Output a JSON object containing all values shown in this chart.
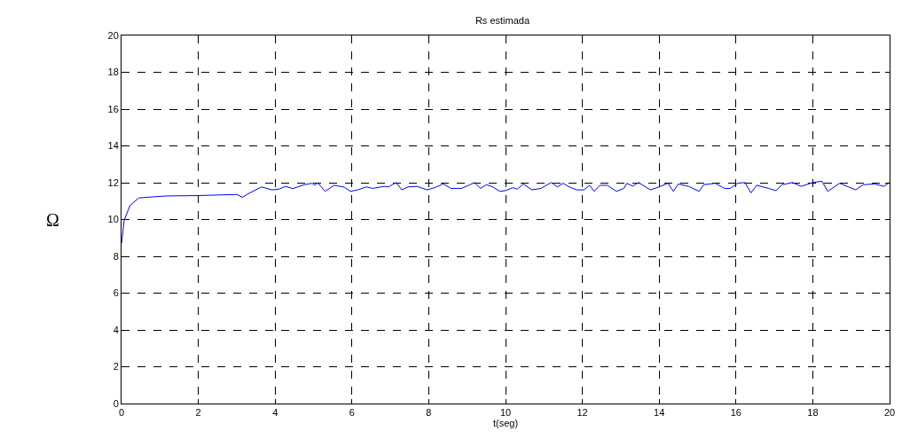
{
  "chart_data": {
    "type": "line",
    "title": "Rs estimada",
    "xlabel": "t(seg)",
    "ylabel": "Ω",
    "xlim": [
      0,
      20
    ],
    "xticks": [
      0,
      2,
      4,
      6,
      8,
      10,
      12,
      14,
      16,
      18,
      20
    ],
    "ylim": [
      0,
      20
    ],
    "yticks": [
      0,
      2,
      4,
      6,
      8,
      10,
      12,
      14,
      16,
      18,
      20
    ],
    "grid": true,
    "marker": "none",
    "line_style": "solid",
    "series": [
      {
        "color": "#0000ff",
        "x": [
          0,
          0.07,
          0.22,
          0.45,
          0.69,
          1.18,
          1.99,
          3.0,
          3.15,
          3.3,
          3.65,
          3.92,
          4.1,
          4.27,
          4.46,
          4.76,
          4.96,
          5.03,
          5.11,
          5.3,
          5.54,
          5.8,
          5.96,
          6.15,
          6.38,
          6.54,
          6.84,
          6.96,
          7.15,
          7.3,
          7.46,
          7.69,
          7.96,
          8.15,
          8.38,
          8.58,
          8.85,
          9.04,
          9.19,
          9.35,
          9.5,
          9.66,
          9.85,
          10.0,
          10.19,
          10.31,
          10.46,
          10.69,
          10.92,
          11.19,
          11.35,
          11.5,
          11.62,
          11.85,
          12.04,
          12.19,
          12.31,
          12.46,
          12.65,
          12.89,
          13.08,
          13.16,
          13.31,
          13.46,
          13.77,
          14.0,
          14.23,
          14.37,
          14.5,
          14.77,
          15.04,
          15.16,
          15.46,
          15.7,
          15.85,
          16.04,
          16.23,
          16.39,
          16.54,
          16.85,
          17.04,
          17.2,
          17.47,
          17.7,
          18.0,
          18.24,
          18.39,
          18.7,
          18.93,
          19.12,
          19.31,
          19.62,
          19.85,
          20.0
        ],
        "values": [
          8.7,
          9.96,
          10.76,
          11.17,
          11.21,
          11.28,
          11.3,
          11.36,
          11.21,
          11.4,
          11.77,
          11.61,
          11.65,
          11.8,
          11.68,
          11.89,
          11.97,
          11.86,
          12.0,
          11.53,
          11.86,
          11.76,
          11.53,
          11.61,
          11.77,
          11.69,
          11.8,
          11.78,
          12.01,
          11.61,
          11.77,
          11.8,
          11.61,
          11.73,
          11.93,
          11.69,
          11.69,
          11.86,
          12.01,
          11.69,
          11.89,
          11.78,
          11.53,
          11.57,
          11.73,
          11.65,
          11.93,
          11.61,
          11.69,
          12.01,
          11.77,
          11.97,
          11.81,
          11.61,
          11.61,
          11.86,
          11.53,
          11.86,
          11.86,
          11.53,
          11.69,
          11.97,
          11.81,
          12.01,
          11.61,
          11.77,
          11.97,
          11.53,
          11.93,
          11.8,
          11.53,
          11.89,
          11.97,
          11.69,
          11.69,
          11.97,
          12.01,
          11.45,
          11.86,
          11.69,
          11.57,
          11.89,
          12.01,
          11.8,
          12.01,
          12.08,
          11.53,
          11.97,
          11.77,
          11.61,
          11.89,
          11.93,
          11.8,
          12.01
        ]
      }
    ]
  }
}
